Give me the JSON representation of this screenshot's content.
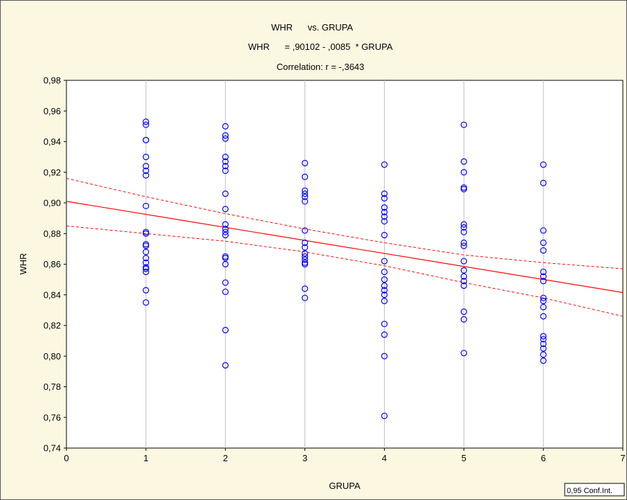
{
  "chart_data": {
    "type": "scatter",
    "title": "WHR      vs. GRUPA",
    "subtitle": "WHR      = ,90102 - ,0085  * GRUPA",
    "correlation": "Correlation: r = -,3643",
    "xlabel": "GRUPA",
    "ylabel": "WHR",
    "xlim": [
      0,
      7
    ],
    "ylim": [
      0.74,
      0.98
    ],
    "xticks": [
      0,
      1,
      2,
      3,
      4,
      5,
      6,
      7
    ],
    "xtick_labels": [
      "0",
      "1",
      "2",
      "3",
      "4",
      "5",
      "6",
      "7"
    ],
    "yticks": [
      0.74,
      0.76,
      0.78,
      0.8,
      0.82,
      0.84,
      0.86,
      0.88,
      0.9,
      0.92,
      0.94,
      0.96,
      0.98
    ],
    "ytick_labels": [
      "0,74",
      "0,76",
      "0,78",
      "0,80",
      "0,82",
      "0,84",
      "0,86",
      "0,88",
      "0,90",
      "0,92",
      "0,94",
      "0,96",
      "0,98"
    ],
    "grid": "vertical",
    "legend": "0,95 Conf.Int.",
    "legend_position": "bottom-right",
    "marker_color": "#0000ff",
    "fit_color": "#ff0000",
    "fit_line": {
      "intercept": 0.90102,
      "slope": -0.0085
    },
    "ci_upper": {
      "x": [
        0,
        1,
        2,
        3,
        4,
        5,
        6,
        7
      ],
      "y": [
        0.916,
        0.904,
        0.893,
        0.883,
        0.874,
        0.866,
        0.861,
        0.857
      ]
    },
    "ci_lower": {
      "x": [
        0,
        1,
        2,
        3,
        4,
        5,
        6,
        7
      ],
      "y": [
        0.885,
        0.88,
        0.875,
        0.868,
        0.859,
        0.848,
        0.838,
        0.826
      ]
    },
    "points": [
      [
        1,
        0.953
      ],
      [
        1,
        0.951
      ],
      [
        1,
        0.941
      ],
      [
        1,
        0.941
      ],
      [
        1,
        0.93
      ],
      [
        1,
        0.924
      ],
      [
        1,
        0.921
      ],
      [
        1,
        0.918
      ],
      [
        1,
        0.898
      ],
      [
        1,
        0.881
      ],
      [
        1,
        0.88
      ],
      [
        1,
        0.873
      ],
      [
        1,
        0.872
      ],
      [
        1,
        0.868
      ],
      [
        1,
        0.864
      ],
      [
        1,
        0.861
      ],
      [
        1,
        0.858
      ],
      [
        1,
        0.857
      ],
      [
        1,
        0.855
      ],
      [
        1,
        0.843
      ],
      [
        1,
        0.835
      ],
      [
        2,
        0.95
      ],
      [
        2,
        0.944
      ],
      [
        2,
        0.942
      ],
      [
        2,
        0.93
      ],
      [
        2,
        0.927
      ],
      [
        2,
        0.924
      ],
      [
        2,
        0.921
      ],
      [
        2,
        0.906
      ],
      [
        2,
        0.896
      ],
      [
        2,
        0.886
      ],
      [
        2,
        0.883
      ],
      [
        2,
        0.881
      ],
      [
        2,
        0.879
      ],
      [
        2,
        0.865
      ],
      [
        2,
        0.864
      ],
      [
        2,
        0.86
      ],
      [
        2,
        0.848
      ],
      [
        2,
        0.842
      ],
      [
        2,
        0.817
      ],
      [
        2,
        0.794
      ],
      [
        3,
        0.926
      ],
      [
        3,
        0.917
      ],
      [
        3,
        0.908
      ],
      [
        3,
        0.906
      ],
      [
        3,
        0.904
      ],
      [
        3,
        0.901
      ],
      [
        3,
        0.882
      ],
      [
        3,
        0.874
      ],
      [
        3,
        0.871
      ],
      [
        3,
        0.867
      ],
      [
        3,
        0.865
      ],
      [
        3,
        0.863
      ],
      [
        3,
        0.861
      ],
      [
        3,
        0.86
      ],
      [
        3,
        0.844
      ],
      [
        3,
        0.838
      ],
      [
        4,
        0.925
      ],
      [
        4,
        0.906
      ],
      [
        4,
        0.903
      ],
      [
        4,
        0.897
      ],
      [
        4,
        0.894
      ],
      [
        4,
        0.891
      ],
      [
        4,
        0.888
      ],
      [
        4,
        0.879
      ],
      [
        4,
        0.862
      ],
      [
        4,
        0.855
      ],
      [
        4,
        0.85
      ],
      [
        4,
        0.846
      ],
      [
        4,
        0.843
      ],
      [
        4,
        0.84
      ],
      [
        4,
        0.836
      ],
      [
        4,
        0.821
      ],
      [
        4,
        0.814
      ],
      [
        4,
        0.8
      ],
      [
        4,
        0.761
      ],
      [
        5,
        0.951
      ],
      [
        5,
        0.927
      ],
      [
        5,
        0.92
      ],
      [
        5,
        0.91
      ],
      [
        5,
        0.909
      ],
      [
        5,
        0.886
      ],
      [
        5,
        0.884
      ],
      [
        5,
        0.881
      ],
      [
        5,
        0.874
      ],
      [
        5,
        0.872
      ],
      [
        5,
        0.862
      ],
      [
        5,
        0.856
      ],
      [
        5,
        0.852
      ],
      [
        5,
        0.849
      ],
      [
        5,
        0.846
      ],
      [
        5,
        0.829
      ],
      [
        5,
        0.824
      ],
      [
        5,
        0.802
      ],
      [
        6,
        0.925
      ],
      [
        6,
        0.913
      ],
      [
        6,
        0.882
      ],
      [
        6,
        0.874
      ],
      [
        6,
        0.869
      ],
      [
        6,
        0.855
      ],
      [
        6,
        0.852
      ],
      [
        6,
        0.849
      ],
      [
        6,
        0.838
      ],
      [
        6,
        0.836
      ],
      [
        6,
        0.832
      ],
      [
        6,
        0.826
      ],
      [
        6,
        0.813
      ],
      [
        6,
        0.811
      ],
      [
        6,
        0.808
      ],
      [
        6,
        0.805
      ],
      [
        6,
        0.801
      ],
      [
        6,
        0.797
      ]
    ]
  }
}
